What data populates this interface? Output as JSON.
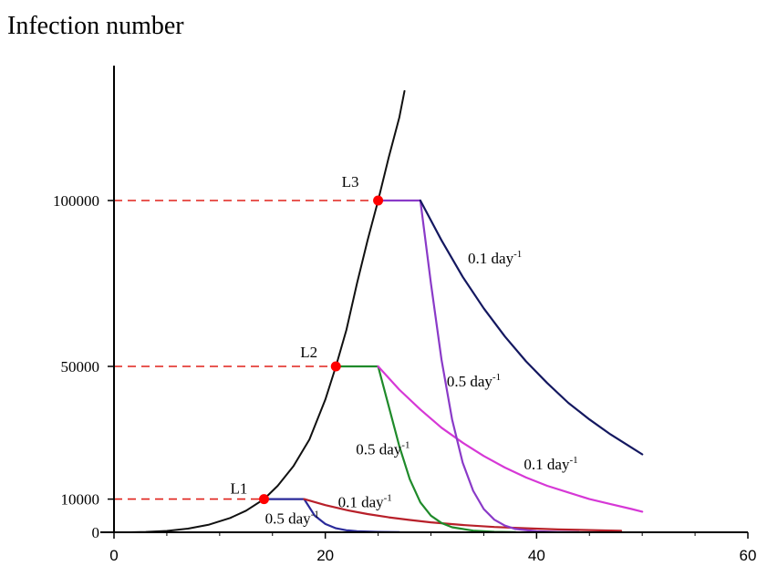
{
  "chart_data": {
    "type": "line",
    "title": "Infection number",
    "xlabel": "",
    "ylabel": "",
    "xlim": [
      0,
      60
    ],
    "x_ticks": [
      0,
      20,
      40,
      60
    ],
    "x_tick_labels": [
      "0",
      "20",
      "40",
      "60"
    ],
    "y_ticks": [
      0,
      10000,
      50000,
      100000
    ],
    "y_tick_labels": [
      "0",
      "10000",
      "50000",
      "100000"
    ],
    "grid": false,
    "colors": {
      "black": "#111111",
      "red_dash": "#e0201a",
      "blue": "#2a2a9a",
      "red": "#b8202a",
      "green": "#1f8a2a",
      "magenta": "#d638d6",
      "purple": "#8a3ac8",
      "navy": "#141860",
      "marker": "#ff0000"
    },
    "threshold_points": [
      {
        "label": "L1",
        "x": 14.2,
        "y": 10000
      },
      {
        "label": "L2",
        "x": 21.0,
        "y": 50000
      },
      {
        "label": "L3",
        "x": 25.0,
        "y": 100000
      }
    ],
    "series": [
      {
        "color_key": "black",
        "points": [
          [
            1.5,
            0
          ],
          [
            3,
            100
          ],
          [
            5,
            400
          ],
          [
            7,
            1100
          ],
          [
            9,
            2300
          ],
          [
            11,
            4300
          ],
          [
            12.5,
            6500
          ],
          [
            14.2,
            10000
          ],
          [
            15.5,
            14000
          ],
          [
            17,
            20000
          ],
          [
            18.5,
            28000
          ],
          [
            20,
            40000
          ],
          [
            21,
            50000
          ],
          [
            22,
            61000
          ],
          [
            23,
            75000
          ],
          [
            24,
            88000
          ],
          [
            25,
            100000
          ],
          [
            26,
            113000
          ],
          [
            27,
            125000
          ],
          [
            27.5,
            133000
          ]
        ]
      },
      {
        "color_key": "blue",
        "points": [
          [
            14.2,
            10000
          ],
          [
            18,
            10000
          ],
          [
            19,
            5000
          ],
          [
            20,
            2500
          ],
          [
            21,
            1200
          ],
          [
            22,
            600
          ],
          [
            23,
            300
          ],
          [
            25,
            100
          ],
          [
            27,
            30
          ]
        ]
      },
      {
        "color_key": "red",
        "points": [
          [
            18,
            10000
          ],
          [
            20,
            8200
          ],
          [
            22,
            6700
          ],
          [
            24,
            5500
          ],
          [
            26,
            4500
          ],
          [
            28,
            3700
          ],
          [
            30,
            3000
          ],
          [
            33,
            2200
          ],
          [
            36,
            1600
          ],
          [
            39,
            1200
          ],
          [
            42,
            850
          ],
          [
            45,
            650
          ],
          [
            48,
            450
          ]
        ]
      },
      {
        "color_key": "green",
        "points": [
          [
            21,
            50000
          ],
          [
            25,
            50000
          ],
          [
            26,
            38000
          ],
          [
            27,
            26000
          ],
          [
            28,
            16000
          ],
          [
            29,
            9000
          ],
          [
            30,
            5000
          ],
          [
            31,
            2800
          ],
          [
            32,
            1500
          ],
          [
            34,
            500
          ],
          [
            36,
            150
          ],
          [
            38,
            50
          ]
        ]
      },
      {
        "color_key": "magenta",
        "points": [
          [
            25,
            50000
          ],
          [
            27,
            43000
          ],
          [
            29,
            37000
          ],
          [
            31,
            31500
          ],
          [
            33,
            27000
          ],
          [
            35,
            23000
          ],
          [
            37,
            19500
          ],
          [
            39,
            16500
          ],
          [
            41,
            14000
          ],
          [
            43,
            12000
          ],
          [
            45,
            10000
          ],
          [
            47,
            8500
          ],
          [
            49,
            7000
          ],
          [
            50,
            6200
          ]
        ]
      },
      {
        "color_key": "purple",
        "points": [
          [
            25,
            100000
          ],
          [
            29,
            100000
          ],
          [
            30,
            75000
          ],
          [
            31,
            52000
          ],
          [
            32,
            34000
          ],
          [
            33,
            21000
          ],
          [
            34,
            12500
          ],
          [
            35,
            7000
          ],
          [
            36,
            3800
          ],
          [
            37,
            2000
          ],
          [
            38,
            1000
          ],
          [
            40,
            300
          ],
          [
            42,
            100
          ],
          [
            44,
            40
          ]
        ]
      },
      {
        "color_key": "navy",
        "points": [
          [
            29,
            100000
          ],
          [
            31,
            88000
          ],
          [
            33,
            77000
          ],
          [
            35,
            67500
          ],
          [
            37,
            59000
          ],
          [
            39,
            51500
          ],
          [
            41,
            45000
          ],
          [
            43,
            39000
          ],
          [
            45,
            34000
          ],
          [
            47,
            29500
          ],
          [
            49,
            25500
          ],
          [
            50,
            23500
          ]
        ]
      }
    ],
    "annotations": [
      {
        "text": "0.1 day",
        "sup": "-1",
        "x": 33.5,
        "y": 81000
      },
      {
        "text": "0.5 day",
        "sup": "-1",
        "x": 31.5,
        "y": 44000
      },
      {
        "text": "0.5 day",
        "sup": "-1",
        "x": 22.9,
        "y": 23500
      },
      {
        "text": "0.1 day",
        "sup": "-1",
        "x": 38.8,
        "y": 19000
      },
      {
        "text": "0.1 day",
        "sup": "-1",
        "x": 21.2,
        "y": 7500
      },
      {
        "text": "0.5 day",
        "sup": "-1",
        "x": 14.3,
        "y": 2600
      }
    ]
  }
}
